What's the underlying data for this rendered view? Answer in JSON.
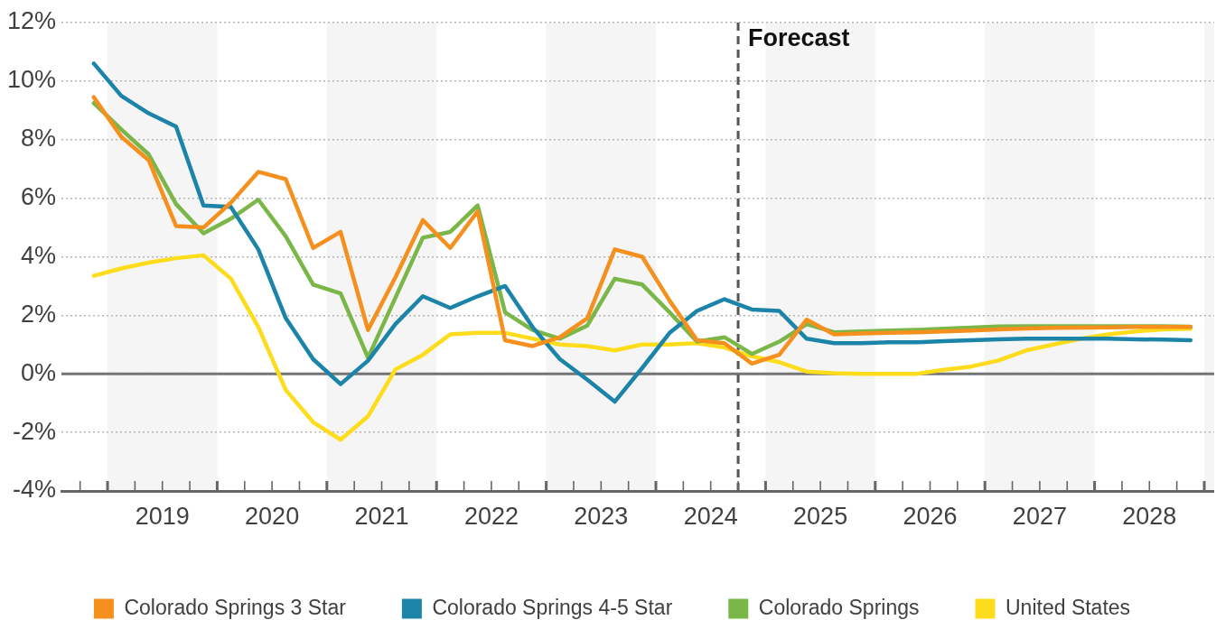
{
  "chart_data": {
    "type": "line",
    "x": [
      2018.875,
      2019.125,
      2019.375,
      2019.625,
      2019.875,
      2020.125,
      2020.375,
      2020.625,
      2020.875,
      2021.125,
      2021.375,
      2021.625,
      2021.875,
      2022.125,
      2022.375,
      2022.625,
      2022.875,
      2023.125,
      2023.375,
      2023.625,
      2023.875,
      2024.125,
      2024.375,
      2024.625,
      2024.875,
      2025.125,
      2025.375,
      2025.625,
      2025.875,
      2026.125,
      2026.375,
      2026.625,
      2026.875,
      2027.125,
      2027.375,
      2027.625,
      2027.875,
      2028.125,
      2028.375,
      2028.625,
      2028.875
    ],
    "series": [
      {
        "name": "Colorado Springs 3 Star",
        "color": "#f5901e",
        "values": [
          9.45,
          8.1,
          7.3,
          5.05,
          5.0,
          5.85,
          6.9,
          6.65,
          4.3,
          4.85,
          1.5,
          3.3,
          5.25,
          4.3,
          5.55,
          1.15,
          0.95,
          1.25,
          1.9,
          4.25,
          4.0,
          2.5,
          1.15,
          1.05,
          0.35,
          0.65,
          1.85,
          1.35,
          1.38,
          1.4,
          1.42,
          1.45,
          1.48,
          1.52,
          1.55,
          1.57,
          1.58,
          1.59,
          1.6,
          1.6,
          1.6
        ]
      },
      {
        "name": "Colorado Springs 4-5 Star",
        "color": "#1c84a8",
        "values": [
          10.6,
          9.5,
          8.9,
          8.45,
          5.75,
          5.7,
          4.25,
          1.9,
          0.5,
          -0.35,
          0.45,
          1.7,
          2.65,
          2.25,
          2.65,
          3.0,
          1.6,
          0.5,
          -0.2,
          -0.95,
          0.2,
          1.4,
          2.15,
          2.55,
          2.2,
          2.15,
          1.2,
          1.05,
          1.05,
          1.08,
          1.08,
          1.12,
          1.15,
          1.18,
          1.2,
          1.2,
          1.2,
          1.2,
          1.18,
          1.17,
          1.15
        ]
      },
      {
        "name": "Colorado Springs",
        "color": "#7ab648",
        "values": [
          9.25,
          8.35,
          7.5,
          5.8,
          4.8,
          5.3,
          5.95,
          4.7,
          3.05,
          2.75,
          0.55,
          2.6,
          4.65,
          4.85,
          5.75,
          2.1,
          1.5,
          1.2,
          1.65,
          3.25,
          3.05,
          2.1,
          1.1,
          1.25,
          0.68,
          1.1,
          1.7,
          1.42,
          1.45,
          1.48,
          1.5,
          1.54,
          1.58,
          1.62,
          1.63,
          1.63,
          1.63,
          1.63,
          1.63,
          1.63,
          1.61
        ]
      },
      {
        "name": "United States",
        "color": "#fddc1c",
        "values": [
          3.35,
          3.6,
          3.8,
          3.95,
          4.05,
          3.25,
          1.6,
          -0.55,
          -1.65,
          -2.25,
          -1.45,
          0.15,
          0.65,
          1.35,
          1.4,
          1.4,
          1.2,
          1.0,
          0.95,
          0.8,
          1.0,
          1.0,
          1.05,
          0.9,
          0.6,
          0.4,
          0.08,
          0.02,
          0.0,
          0.0,
          0.0,
          0.14,
          0.25,
          0.46,
          0.8,
          1.0,
          1.2,
          1.35,
          1.45,
          1.52,
          1.54
        ]
      }
    ],
    "xlim": [
      2018.58,
      2029.09
    ],
    "xticks": [
      {
        "value": 2018.75,
        "label": null
      },
      {
        "value": 2019,
        "label": null
      },
      {
        "value": 2019.25,
        "label": null
      },
      {
        "value": 2019.5,
        "label": "2019"
      },
      {
        "value": 2019.75,
        "label": null
      },
      {
        "value": 2020,
        "label": null
      },
      {
        "value": 2020.25,
        "label": null
      },
      {
        "value": 2020.5,
        "label": "2020"
      },
      {
        "value": 2020.75,
        "label": null
      },
      {
        "value": 2021,
        "label": null
      },
      {
        "value": 2021.25,
        "label": null
      },
      {
        "value": 2021.5,
        "label": "2021"
      },
      {
        "value": 2021.75,
        "label": null
      },
      {
        "value": 2022,
        "label": null
      },
      {
        "value": 2022.25,
        "label": null
      },
      {
        "value": 2022.5,
        "label": "2022"
      },
      {
        "value": 2022.75,
        "label": null
      },
      {
        "value": 2023,
        "label": null
      },
      {
        "value": 2023.25,
        "label": null
      },
      {
        "value": 2023.5,
        "label": "2023"
      },
      {
        "value": 2023.75,
        "label": null
      },
      {
        "value": 2024,
        "label": null
      },
      {
        "value": 2024.25,
        "label": null
      },
      {
        "value": 2024.5,
        "label": "2024"
      },
      {
        "value": 2024.75,
        "label": null
      },
      {
        "value": 2025,
        "label": null
      },
      {
        "value": 2025.25,
        "label": null
      },
      {
        "value": 2025.5,
        "label": "2025"
      },
      {
        "value": 2025.75,
        "label": null
      },
      {
        "value": 2026,
        "label": null
      },
      {
        "value": 2026.25,
        "label": null
      },
      {
        "value": 2026.5,
        "label": "2026"
      },
      {
        "value": 2026.75,
        "label": null
      },
      {
        "value": 2027,
        "label": null
      },
      {
        "value": 2027.25,
        "label": null
      },
      {
        "value": 2027.5,
        "label": "2027"
      },
      {
        "value": 2027.75,
        "label": null
      },
      {
        "value": 2028,
        "label": null
      },
      {
        "value": 2028.25,
        "label": null
      },
      {
        "value": 2028.5,
        "label": "2028"
      },
      {
        "value": 2028.75,
        "label": null
      },
      {
        "value": 2029,
        "label": null
      }
    ],
    "ylim": [
      -4,
      12
    ],
    "yticks": [
      {
        "value": -4,
        "label": "-4%"
      },
      {
        "value": -2,
        "label": "-2%"
      },
      {
        "value": 0,
        "label": "0%"
      },
      {
        "value": 2,
        "label": "2%"
      },
      {
        "value": 4,
        "label": "4%"
      },
      {
        "value": 6,
        "label": "6%"
      },
      {
        "value": 8,
        "label": "8%"
      },
      {
        "value": 10,
        "label": "10%"
      },
      {
        "value": 12,
        "label": "12%"
      }
    ],
    "grid": "y",
    "legend": "bottom",
    "ref_lines": [
      {
        "axis": "y",
        "value": 0,
        "color": "#757575"
      },
      {
        "axis": "x",
        "value": 2024.75,
        "label": "Forecast",
        "color": "#555555",
        "line_style": "dashed"
      }
    ],
    "bands": [
      {
        "axis": "x",
        "from": 2019,
        "to": 2020,
        "color": "#f5f5f5"
      },
      {
        "axis": "x",
        "from": 2021,
        "to": 2022,
        "color": "#f5f5f5"
      },
      {
        "axis": "x",
        "from": 2023,
        "to": 2024,
        "color": "#f5f5f5"
      },
      {
        "axis": "x",
        "from": 2025,
        "to": 2026,
        "color": "#f5f5f5"
      },
      {
        "axis": "x",
        "from": 2027,
        "to": 2028,
        "color": "#f5f5f5"
      },
      {
        "axis": "x",
        "from": 2029,
        "to": 2029.09,
        "color": "#f5f5f5"
      }
    ]
  }
}
